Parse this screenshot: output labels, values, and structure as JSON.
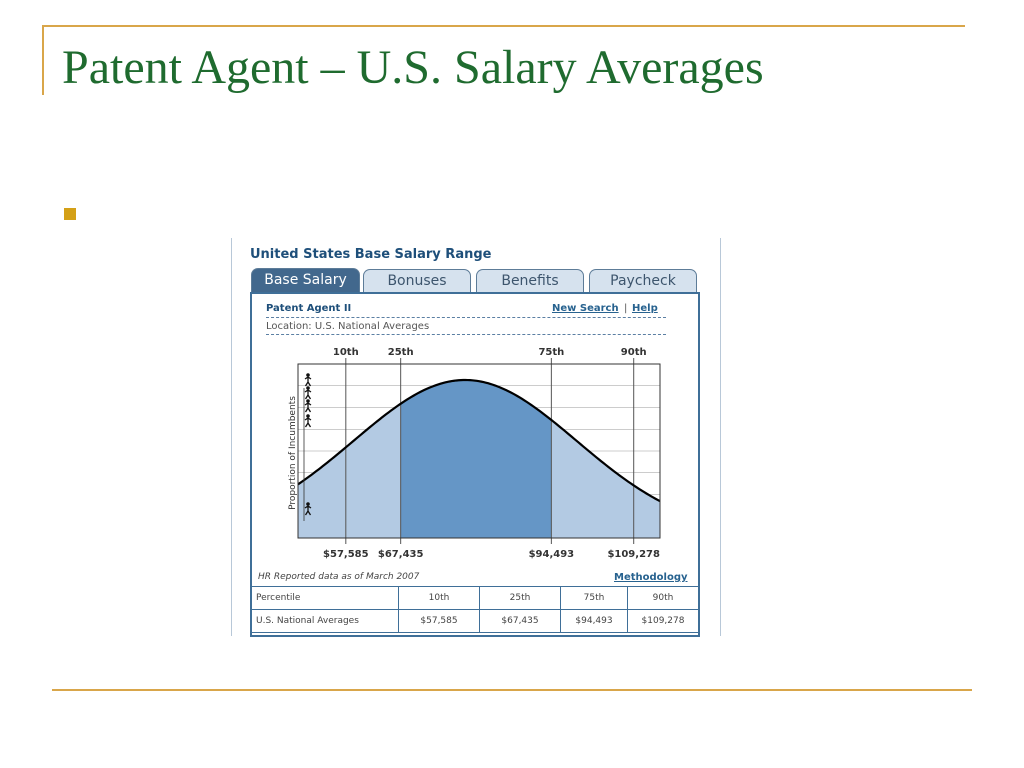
{
  "slide": {
    "title": "Patent Agent – U.S. Salary Averages"
  },
  "widget": {
    "title": "United States Base Salary Range",
    "tabs": [
      {
        "label": "Base Salary",
        "active": true
      },
      {
        "label": "Bonuses",
        "active": false
      },
      {
        "label": "Benefits",
        "active": false
      },
      {
        "label": "Paycheck",
        "active": false
      }
    ],
    "job_title": "Patent Agent II",
    "links": {
      "new_search": "New Search",
      "separator": "|",
      "help": "Help"
    },
    "location": "Location:  U.S. National Averages",
    "reported": "HR Reported data as of March 2007",
    "methodology": "Methodology"
  },
  "chart_data": {
    "type": "area",
    "title": "",
    "ylabel": "Proportion of Incumbents",
    "percentile_labels": [
      "10th",
      "25th",
      "75th",
      "90th"
    ],
    "x_tick_labels": [
      "$57,585",
      "$67,435",
      "$94,493",
      "$109,278"
    ],
    "x": [
      57585,
      67435,
      94493,
      109278
    ],
    "xlim": [
      49000,
      114000
    ],
    "median": 79000,
    "grid": true,
    "colors": {
      "outer": "#b3cae3",
      "inner": "#6596c6",
      "curve": "#000000",
      "grid": "#9a9a9a"
    }
  },
  "table": {
    "rows": [
      [
        "Percentile",
        "10th",
        "25th",
        "75th",
        "90th"
      ],
      [
        "U.S. National Averages",
        "$57,585",
        "$67,435",
        "$94,493",
        "$109,278"
      ]
    ]
  },
  "colors": {
    "title": "#1f6b2f",
    "rule": "#d9a64a",
    "bullet": "#d4a017",
    "widget_accent": "#3f6f98"
  }
}
